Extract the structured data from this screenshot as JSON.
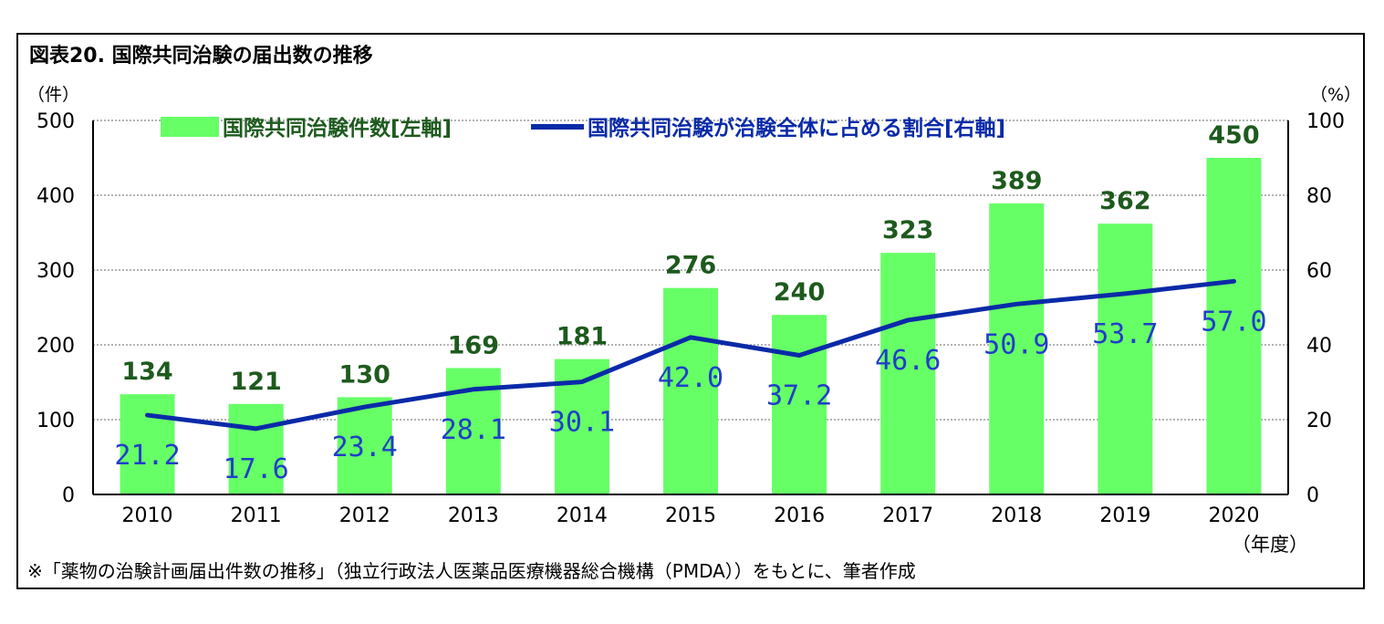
{
  "title": "図表20.  国際共同治験の届出数の推移",
  "left_unit": "（件）",
  "right_unit": "（%）",
  "x_unit": "（年度）",
  "footnote": "※「薬物の治験計画届出件数の推移」（独立行政法人医薬品医療機器総合機構（PMDA））をもとに、筆者作成",
  "colors": {
    "bar": "#66ff66",
    "bar_label": "#1e5a1e",
    "line": "#0a2aa8",
    "line_label": "#1f3fc8"
  },
  "chart_data": {
    "type": "bar",
    "title": "図表20.  国際共同治験の届出数の推移",
    "categories": [
      "2010",
      "2011",
      "2012",
      "2013",
      "2014",
      "2015",
      "2016",
      "2017",
      "2018",
      "2019",
      "2020"
    ],
    "series": [
      {
        "name": "国際共同治験件数[左軸]",
        "type": "bar",
        "axis": "left",
        "values": [
          134,
          121,
          130,
          169,
          181,
          276,
          240,
          323,
          389,
          362,
          450
        ],
        "labels": [
          "134",
          "121",
          "130",
          "169",
          "181",
          "276",
          "240",
          "323",
          "389",
          "362",
          "450"
        ]
      },
      {
        "name": "国際共同治験が治験全体に占める割合[右軸]",
        "type": "line",
        "axis": "right",
        "values": [
          21.2,
          17.6,
          23.4,
          28.1,
          30.1,
          42.0,
          37.2,
          46.6,
          50.9,
          53.7,
          57.0
        ],
        "labels": [
          "21.2",
          "17.6",
          "23.4",
          "28.1",
          "30.1",
          "42.0",
          "37.2",
          "46.6",
          "50.9",
          "53.7",
          "57.0"
        ]
      }
    ],
    "y_left": {
      "range": [
        0,
        500
      ],
      "ticks": [
        "0",
        "100",
        "200",
        "300",
        "400",
        "500"
      ],
      "tick_values": [
        0,
        100,
        200,
        300,
        400,
        500
      ]
    },
    "y_right": {
      "range": [
        0,
        100
      ],
      "ticks": [
        "0",
        "20",
        "40",
        "60",
        "80",
        "100"
      ],
      "tick_values": [
        0,
        20,
        40,
        60,
        80,
        100
      ]
    },
    "grid": true,
    "legend": "top"
  }
}
